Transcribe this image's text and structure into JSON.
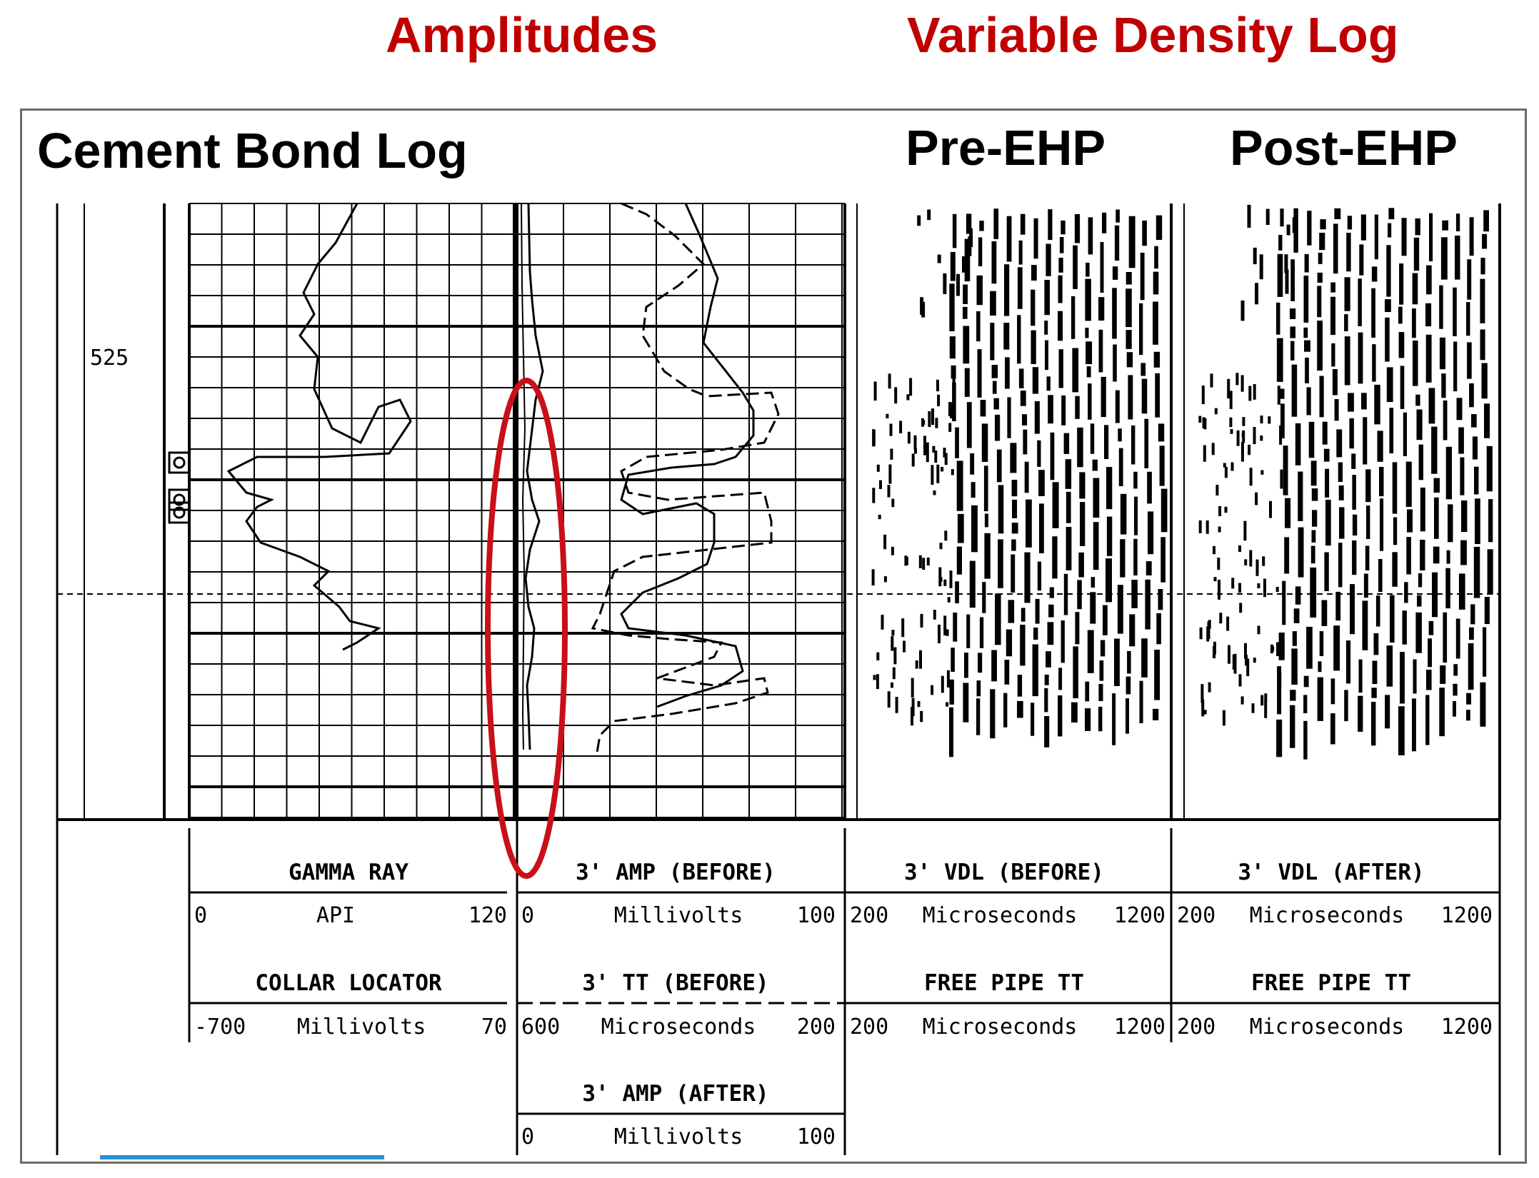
{
  "headings": {
    "amplitudes": "Amplitudes",
    "vdl": "Variable Density Log"
  },
  "titles": {
    "cbl": "Cement Bond Log",
    "pre": "Pre-EHP",
    "post": "Post-EHP"
  },
  "depth_label": "525",
  "legend": {
    "gamma_ray": {
      "name": "GAMMA RAY",
      "min": "0",
      "unit": "API",
      "max": "120"
    },
    "collar_locator": {
      "name": "COLLAR LOCATOR",
      "min": "-700",
      "unit": "Millivolts",
      "max": "70"
    },
    "amp_before": {
      "name": "3' AMP (BEFORE)",
      "min": "0",
      "unit": "Millivolts",
      "max": "100"
    },
    "tt_before": {
      "name": "3' TT (BEFORE)",
      "min": "600",
      "unit": "Microseconds",
      "max": "200"
    },
    "amp_after": {
      "name": "3' AMP (AFTER)",
      "min": "0",
      "unit": "Millivolts",
      "max": "100"
    },
    "vdl_before": {
      "name": "3' VDL (BEFORE)",
      "min": "200",
      "unit": "Microseconds",
      "max": "1200"
    },
    "free_pipe_before": {
      "name": "FREE PIPE TT",
      "min": "200",
      "unit": "Microseconds",
      "max": "1200"
    },
    "vdl_after": {
      "name": "3' VDL (AFTER)",
      "min": "200",
      "unit": "Microseconds",
      "max": "1200"
    },
    "free_pipe_after": {
      "name": "FREE PIPE TT",
      "min": "200",
      "unit": "Microseconds",
      "max": "1200"
    }
  },
  "colors": {
    "heading_red": "#c00000",
    "highlight_ellipse": "#c8101a",
    "frame_gray": "#6a6a6a",
    "accent_blue": "#2b8fd6"
  }
}
